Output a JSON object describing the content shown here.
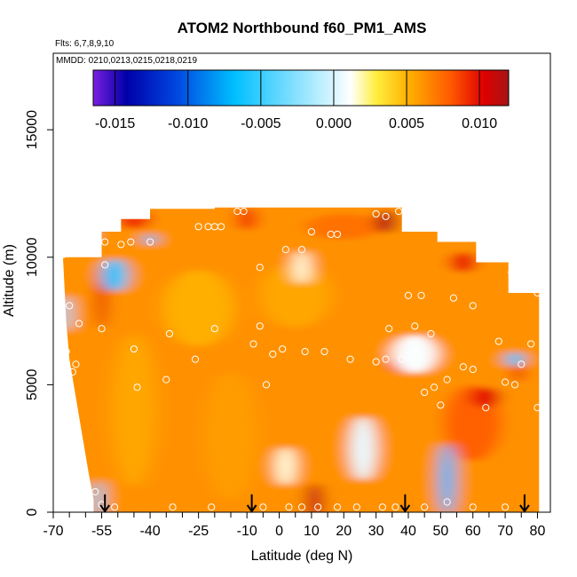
{
  "chart_data": {
    "type": "heatmap",
    "title": "ATOM2 Northbound f60_PM1_AMS",
    "flights_note": "Flts: 6,7,8,9,10",
    "dates_note": "MMDD: 0210,0213,0215,0218,0219",
    "xlabel": "Latitude (deg N)",
    "ylabel": "Altitude (m)",
    "xlim": [
      -70,
      84
    ],
    "ylim": [
      0,
      18000
    ],
    "x_tick_labels": [
      {
        "value": -70,
        "label": "-70"
      },
      {
        "value": -55,
        "label": "-55"
      },
      {
        "value": -40,
        "label": "-40"
      },
      {
        "value": -25,
        "label": "-25"
      },
      {
        "value": -10,
        "label": "-10"
      },
      {
        "value": 0,
        "label": "0"
      },
      {
        "value": 10,
        "label": "10"
      },
      {
        "value": 20,
        "label": "20"
      },
      {
        "value": 30,
        "label": "30"
      },
      {
        "value": 40,
        "label": "40"
      },
      {
        "value": 50,
        "label": "50"
      },
      {
        "value": 60,
        "label": "60"
      },
      {
        "value": 70,
        "label": "70"
      },
      {
        "value": 80,
        "label": "80"
      }
    ],
    "x_minor_ticks": [
      -65,
      -60,
      -50,
      -45,
      -35,
      -30,
      -20,
      -15,
      -5,
      5,
      15,
      25,
      35,
      45,
      55,
      65,
      75
    ],
    "y_tick_labels": [
      {
        "value": 0,
        "label": "0"
      },
      {
        "value": 5000,
        "label": "5000"
      },
      {
        "value": 10000,
        "label": "10000"
      },
      {
        "value": 15000,
        "label": "15000"
      }
    ],
    "colorbar": {
      "range": [
        -0.0165,
        0.012
      ],
      "ticks": [
        {
          "value": -0.015,
          "label": "-0.015"
        },
        {
          "value": -0.01,
          "label": "-0.010"
        },
        {
          "value": -0.005,
          "label": "-0.005"
        },
        {
          "value": 0.0,
          "label": "0.000"
        },
        {
          "value": 0.005,
          "label": "0.005"
        },
        {
          "value": 0.01,
          "label": "0.010"
        }
      ],
      "colors": [
        "#7a1fe0",
        "#0000a8",
        "#0046e0",
        "#00bfff",
        "#ffffff",
        "#ffef40",
        "#ffb000",
        "#ff5a00",
        "#e00000",
        "#a51515"
      ]
    },
    "grid": false,
    "profile_latitudes": [
      -54,
      -8.5,
      39,
      76
    ],
    "columns": [
      {
        "lat0": -57,
        "lat1": -55,
        "top": 10000
      },
      {
        "lat0": -55,
        "lat1": -49,
        "top": 11000
      },
      {
        "lat0": -49,
        "lat1": -40,
        "top": 11500
      },
      {
        "lat0": -40,
        "lat1": -20,
        "top": 11900
      },
      {
        "lat0": -20,
        "lat1": 38,
        "top": 11950
      },
      {
        "lat0": 38,
        "lat1": 49,
        "top": 11000
      },
      {
        "lat0": 49,
        "lat1": 61,
        "top": 10600
      },
      {
        "lat0": 61,
        "lat1": 71,
        "top": 9800
      },
      {
        "lat0": 71,
        "lat1": 80.5,
        "top": 8600
      }
    ],
    "bottom_edge": [
      {
        "lat": -57.5,
        "alt": 500
      },
      {
        "lat": -59,
        "alt": 1500
      },
      {
        "lat": -61,
        "alt": 3000
      },
      {
        "lat": -63,
        "alt": 4500
      },
      {
        "lat": -65,
        "alt": 6000
      },
      {
        "lat": -66,
        "alt": 7500
      },
      {
        "lat": -66.5,
        "alt": 8800
      },
      {
        "lat": -67,
        "alt": 10000
      }
    ],
    "regions": [
      {
        "lat": -45,
        "alt": 4000,
        "lat_w": 14,
        "alt_h": 6000,
        "value": 0.0055
      },
      {
        "lat": -15,
        "alt": 3000,
        "lat_w": 16,
        "alt_h": 5000,
        "value": 0.0058
      },
      {
        "lat": -25,
        "alt": 8000,
        "lat_w": 22,
        "alt_h": 3000,
        "value": 0.0052
      },
      {
        "lat": 5,
        "alt": 8500,
        "lat_w": 22,
        "alt_h": 2500,
        "value": 0.0055
      },
      {
        "lat": 20,
        "alt": 11200,
        "lat_w": 24,
        "alt_h": 1000,
        "value": 0.0072
      },
      {
        "lat": 60,
        "alt": 3500,
        "lat_w": 18,
        "alt_h": 3000,
        "value": 0.0078
      },
      {
        "lat": -45,
        "alt": 11500,
        "lat_w": 10,
        "alt_h": 800,
        "value": 0.009
      },
      {
        "lat": -10,
        "alt": 11500,
        "lat_w": 6,
        "alt_h": 900,
        "value": 0.0088
      },
      {
        "lat": 33,
        "alt": 11400,
        "lat_w": 6,
        "alt_h": 900,
        "value": 0.0115
      },
      {
        "lat": 57,
        "alt": 9800,
        "lat_w": 8,
        "alt_h": 800,
        "value": 0.0095
      },
      {
        "lat": 11,
        "alt": 400,
        "lat_w": 5,
        "alt_h": 1500,
        "value": 0.011
      },
      {
        "lat": -55,
        "alt": 8400,
        "lat_w": 3,
        "alt_h": 2400,
        "value": 0.01
      },
      {
        "lat": 37,
        "alt": 5800,
        "lat_w": 6,
        "alt_h": 600,
        "value": 0.009
      },
      {
        "lat": 64,
        "alt": 4500,
        "lat_w": 9,
        "alt_h": 800,
        "value": 0.01
      },
      {
        "lat": 74,
        "alt": 5500,
        "lat_w": 3,
        "alt_h": 800,
        "value": 0.0095
      },
      {
        "lat": 2,
        "alt": 1800,
        "lat_w": 6,
        "alt_h": 1500,
        "value": 0.0015
      },
      {
        "lat": 26,
        "alt": 2500,
        "lat_w": 8,
        "alt_h": 2500,
        "value": 0.0005
      },
      {
        "lat": 42,
        "alt": 6200,
        "lat_w": 14,
        "alt_h": 1500,
        "value": 0.001
      },
      {
        "lat": 7,
        "alt": 9600,
        "lat_w": 5,
        "alt_h": 1300,
        "value": 0.0015
      },
      {
        "lat": 52,
        "alt": 1300,
        "lat_w": 5,
        "alt_h": 2800,
        "value": -0.007
      },
      {
        "lat": -51,
        "alt": 9300,
        "lat_w": 8,
        "alt_h": 1300,
        "value": -0.006
      },
      {
        "lat": -60,
        "alt": 10900,
        "lat_w": 4,
        "alt_h": 400,
        "value": -0.004
      },
      {
        "lat": -40,
        "alt": 10700,
        "lat_w": 3,
        "alt_h": 500,
        "value": -0.006
      },
      {
        "lat": -56,
        "alt": 500,
        "lat_w": 3,
        "alt_h": 1500,
        "value": -0.004
      },
      {
        "lat": 73,
        "alt": 6000,
        "lat_w": 5,
        "alt_h": 600,
        "value": -0.006
      },
      {
        "lat": -66,
        "alt": 7800,
        "lat_w": 3,
        "alt_h": 1400,
        "value": -0.0025
      }
    ],
    "sample_points": [
      {
        "lat": -57,
        "alt": 11900
      },
      {
        "lat": -60,
        "alt": 11200
      },
      {
        "lat": -54,
        "alt": 10600
      },
      {
        "lat": -49,
        "alt": 10500
      },
      {
        "lat": -46,
        "alt": 10600
      },
      {
        "lat": -40,
        "alt": 10600
      },
      {
        "lat": -54,
        "alt": 9700
      },
      {
        "lat": -67,
        "alt": 10100
      },
      {
        "lat": -25,
        "alt": 11200
      },
      {
        "lat": -22,
        "alt": 11200
      },
      {
        "lat": -20,
        "alt": 11200
      },
      {
        "lat": -18,
        "alt": 11200
      },
      {
        "lat": -13,
        "alt": 11800
      },
      {
        "lat": -11,
        "alt": 11800
      },
      {
        "lat": 2,
        "alt": 10300
      },
      {
        "lat": 7,
        "alt": 10300
      },
      {
        "lat": 10,
        "alt": 11000
      },
      {
        "lat": 16,
        "alt": 10900
      },
      {
        "lat": 18,
        "alt": 10900
      },
      {
        "lat": 30,
        "alt": 11700
      },
      {
        "lat": 33,
        "alt": 11600
      },
      {
        "lat": 37,
        "alt": 11800
      },
      {
        "lat": 63,
        "alt": 10000
      },
      {
        "lat": 72,
        "alt": 9400
      },
      {
        "lat": -6,
        "alt": 9600
      },
      {
        "lat": 40,
        "alt": 8500
      },
      {
        "lat": 44,
        "alt": 8500
      },
      {
        "lat": 54,
        "alt": 8400
      },
      {
        "lat": 60,
        "alt": 8100
      },
      {
        "lat": 80,
        "alt": 8600
      },
      {
        "lat": -65,
        "alt": 8100
      },
      {
        "lat": -62,
        "alt": 7400
      },
      {
        "lat": -55,
        "alt": 7200
      },
      {
        "lat": -34,
        "alt": 7000
      },
      {
        "lat": -20,
        "alt": 7200
      },
      {
        "lat": -6,
        "alt": 7300
      },
      {
        "lat": -8,
        "alt": 6600
      },
      {
        "lat": 42,
        "alt": 7300
      },
      {
        "lat": 47,
        "alt": 7000
      },
      {
        "lat": 34,
        "alt": 7200
      },
      {
        "lat": -66,
        "alt": 6300
      },
      {
        "lat": -63,
        "alt": 5800
      },
      {
        "lat": -45,
        "alt": 6400
      },
      {
        "lat": -26,
        "alt": 6000
      },
      {
        "lat": 1,
        "alt": 6400
      },
      {
        "lat": 8,
        "alt": 6300
      },
      {
        "lat": 14,
        "alt": 6300
      },
      {
        "lat": -2,
        "alt": 6200
      },
      {
        "lat": 22,
        "alt": 6000
      },
      {
        "lat": 30,
        "alt": 5900
      },
      {
        "lat": 33,
        "alt": 6000
      },
      {
        "lat": 38,
        "alt": 6000
      },
      {
        "lat": 68,
        "alt": 6700
      },
      {
        "lat": 78,
        "alt": 6600
      },
      {
        "lat": 75,
        "alt": 5800
      },
      {
        "lat": -64,
        "alt": 5500
      },
      {
        "lat": -35,
        "alt": 5200
      },
      {
        "lat": -4,
        "alt": 5000
      },
      {
        "lat": -44,
        "alt": 4900
      },
      {
        "lat": 52,
        "alt": 5200
      },
      {
        "lat": 57,
        "alt": 5700
      },
      {
        "lat": 60,
        "alt": 5600
      },
      {
        "lat": 70,
        "alt": 5100
      },
      {
        "lat": 73,
        "alt": 5000
      },
      {
        "lat": 45,
        "alt": 4700
      },
      {
        "lat": 48,
        "alt": 4900
      },
      {
        "lat": 50,
        "alt": 4200
      },
      {
        "lat": 64,
        "alt": 4100
      },
      {
        "lat": 80,
        "alt": 4100
      },
      {
        "lat": -55,
        "alt": 300
      },
      {
        "lat": -57,
        "alt": 800
      },
      {
        "lat": -51,
        "alt": 200
      },
      {
        "lat": -33,
        "alt": 200
      },
      {
        "lat": -21,
        "alt": 200
      },
      {
        "lat": -5,
        "alt": 200
      },
      {
        "lat": 3,
        "alt": 200
      },
      {
        "lat": 7,
        "alt": 200
      },
      {
        "lat": 12,
        "alt": 200
      },
      {
        "lat": 18,
        "alt": 200
      },
      {
        "lat": 24,
        "alt": 200
      },
      {
        "lat": 32,
        "alt": 200
      },
      {
        "lat": 36,
        "alt": 200
      },
      {
        "lat": 45,
        "alt": 200
      },
      {
        "lat": 52,
        "alt": 400
      },
      {
        "lat": 60,
        "alt": 200
      },
      {
        "lat": 70,
        "alt": 200
      }
    ]
  }
}
